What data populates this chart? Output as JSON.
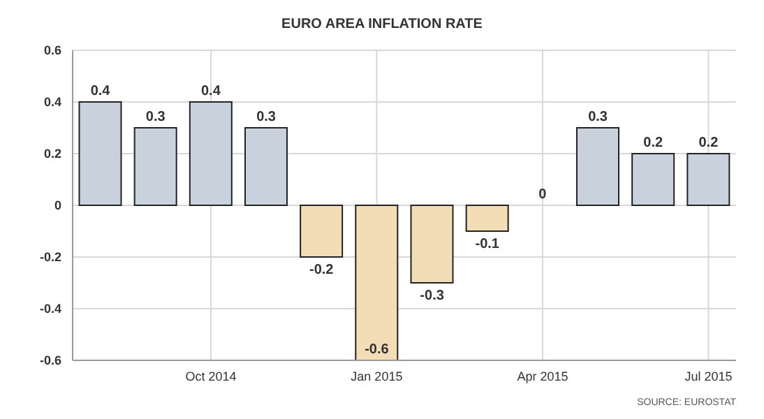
{
  "chart_data": {
    "type": "bar",
    "title": "EURO AREA INFLATION RATE",
    "categories": [
      null,
      null,
      "Oct 2014",
      null,
      null,
      "Jan 2015",
      null,
      null,
      "Apr 2015",
      null,
      null,
      "Jul 2015"
    ],
    "values": [
      0.4,
      0.3,
      0.4,
      0.3,
      -0.2,
      -0.6,
      -0.3,
      -0.1,
      0,
      0.3,
      0.2,
      0.2
    ],
    "colors": [
      "#c9d1dc",
      "#c9d1dc",
      "#c9d1dc",
      "#c9d1dc",
      "#f2ddb6",
      "#f2ddb6",
      "#f2ddb6",
      "#f2ddb6",
      "#c9d1dc",
      "#c9d1dc",
      "#c9d1dc",
      "#c9d1dc"
    ],
    "ylim": [
      -0.6,
      0.6
    ],
    "yticks": [
      -0.6,
      -0.4,
      -0.2,
      0,
      0.2,
      0.4,
      0.6
    ],
    "grid": true,
    "data_labels": true,
    "annotations": [
      "SOURCE: EUROSTAT"
    ]
  }
}
